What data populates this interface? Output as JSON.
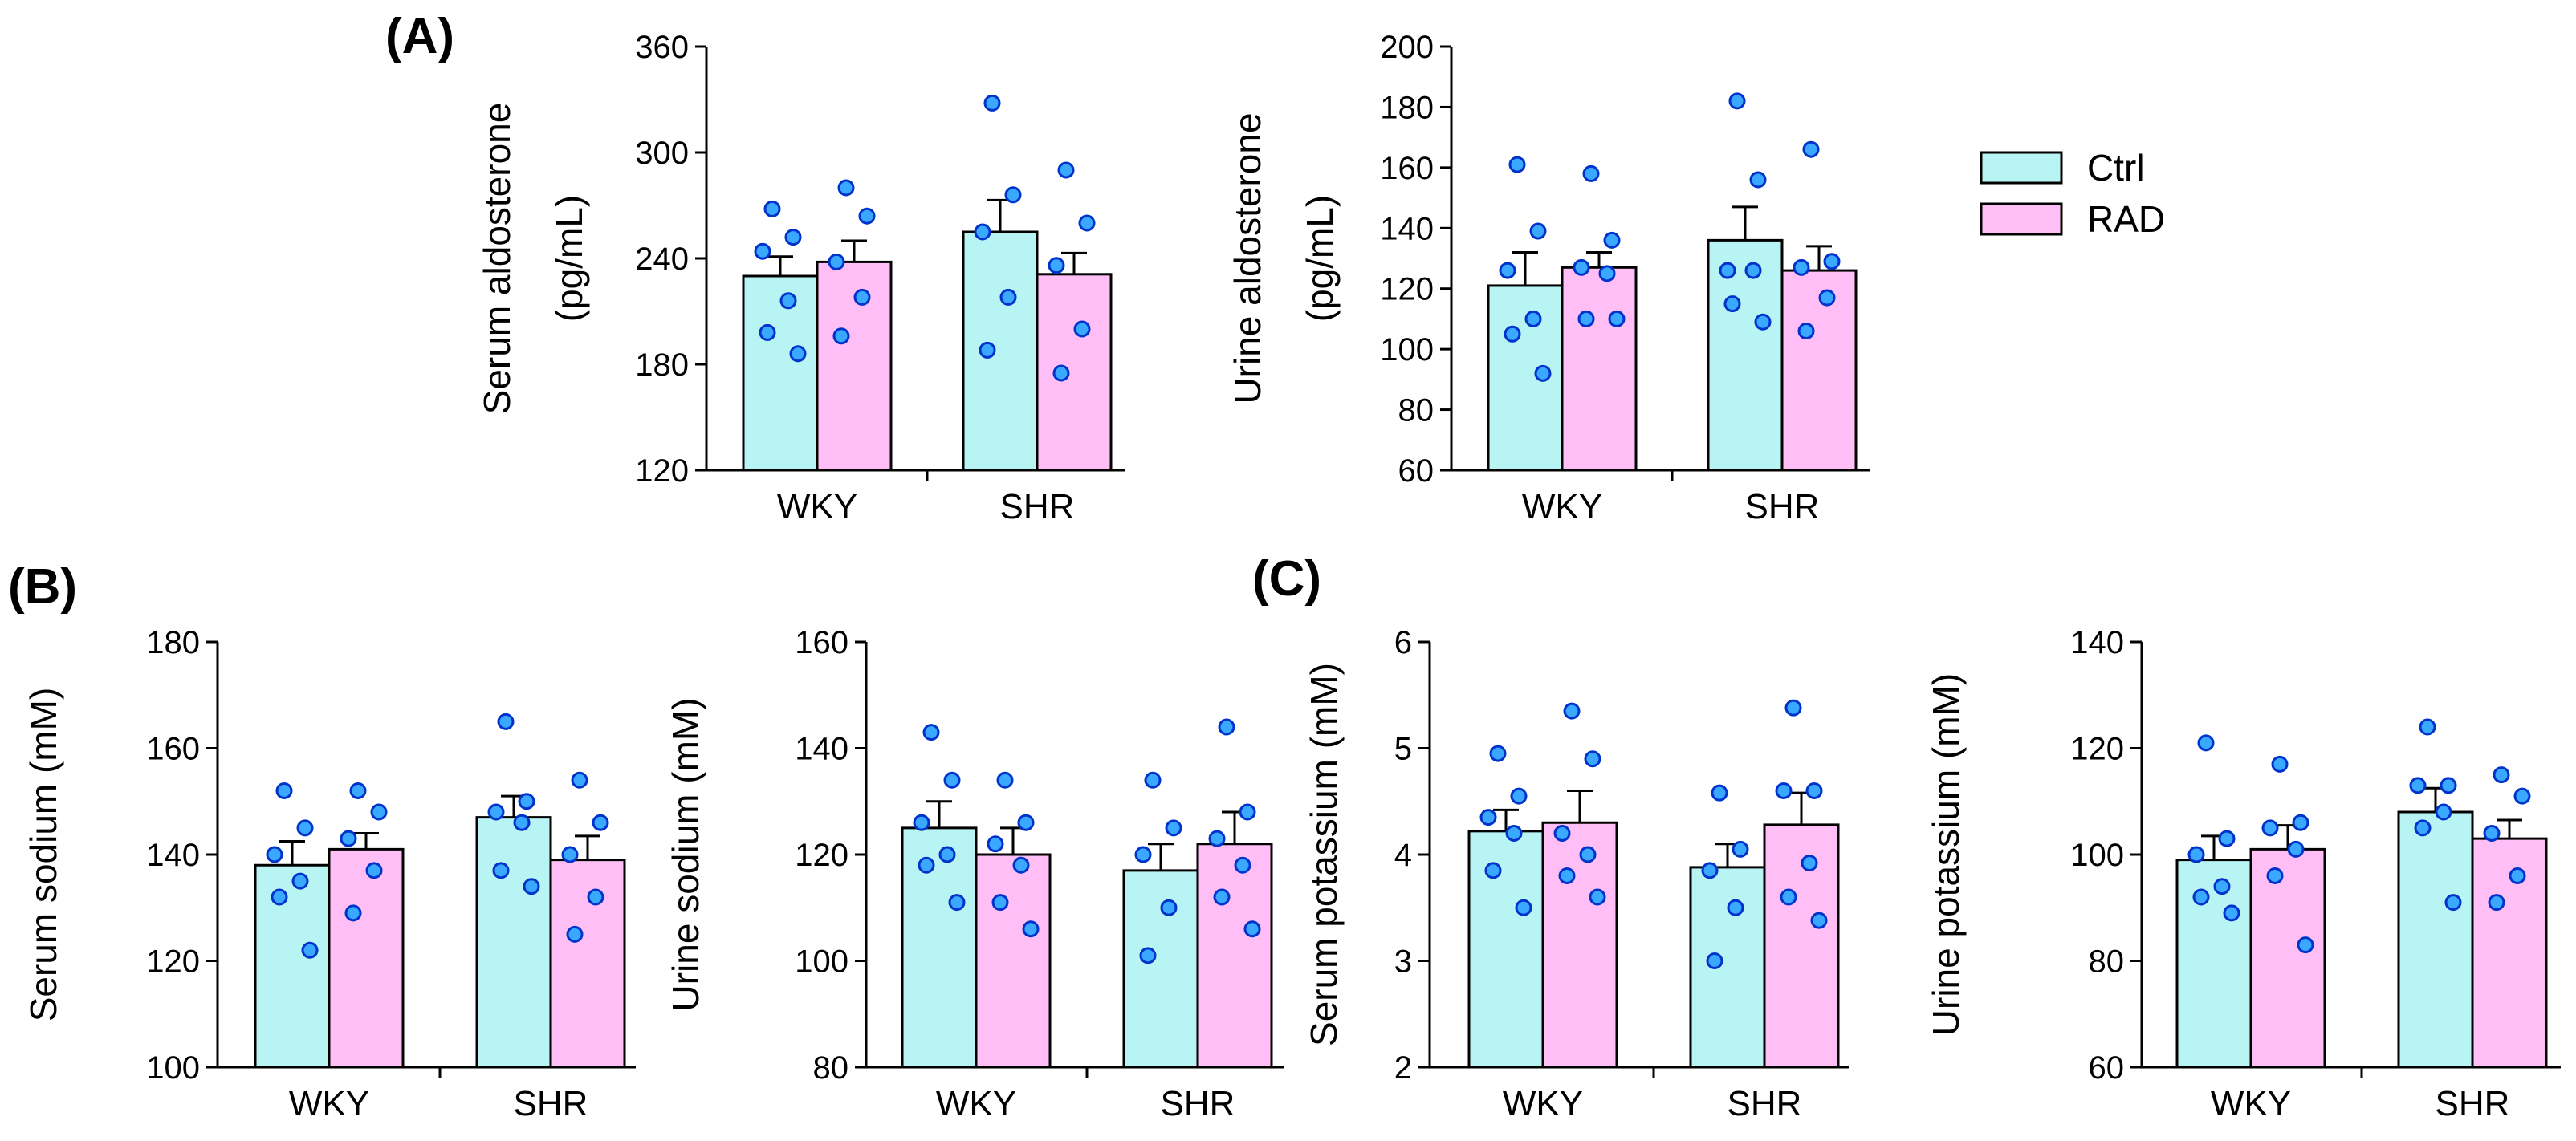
{
  "panel_labels": [
    "(A)",
    "(B)",
    "(C)"
  ],
  "legend": [
    {
      "label": "Ctrl",
      "color": "#b8f4f4"
    },
    {
      "label": "RAD",
      "color": "#ffbff6"
    }
  ],
  "colors": {
    "ctrl": "#b8f4f4",
    "rad": "#ffbff6",
    "dot_fill": "#3aa8ff",
    "dot_stroke": "#0033cc",
    "axis": "#000000"
  },
  "chart_data": [
    {
      "type": "bar",
      "title": "",
      "xlabel": "",
      "ylabel": [
        "Serum aldosterone",
        "(pg/mL)"
      ],
      "categories": [
        "WKY",
        "SHR"
      ],
      "ylim": [
        120,
        360
      ],
      "yticks": [
        120,
        180,
        240,
        300,
        360
      ],
      "grid": false,
      "series": [
        {
          "name": "Ctrl",
          "values": [
            230,
            255
          ],
          "errors": [
            11,
            18
          ],
          "points": [
            [
              268,
              252,
              244,
              216,
              198,
              186
            ],
            [
              328,
              276,
              255,
              218,
              188
            ]
          ]
        },
        {
          "name": "RAD",
          "values": [
            238,
            231
          ],
          "errors": [
            12,
            12
          ],
          "points": [
            [
              280,
              264,
              238,
              218,
              196
            ],
            [
              290,
              260,
              236,
              200,
              175
            ]
          ]
        }
      ]
    },
    {
      "type": "bar",
      "title": "",
      "xlabel": "",
      "ylabel": [
        "Urine aldosterone",
        "(pg/mL)"
      ],
      "categories": [
        "WKY",
        "SHR"
      ],
      "ylim": [
        60,
        200
      ],
      "yticks": [
        60,
        80,
        100,
        120,
        140,
        160,
        180,
        200
      ],
      "grid": false,
      "series": [
        {
          "name": "Ctrl",
          "values": [
            121,
            136
          ],
          "errors": [
            11,
            11
          ],
          "points": [
            [
              161,
              139,
              126,
              110,
              105,
              92
            ],
            [
              182,
              156,
              126,
              126,
              115,
              109
            ]
          ]
        },
        {
          "name": "RAD",
          "values": [
            127,
            126
          ],
          "errors": [
            5,
            8
          ],
          "points": [
            [
              158,
              136,
              127,
              125,
              110,
              110
            ],
            [
              166,
              129,
              127,
              117,
              106
            ]
          ]
        }
      ]
    },
    {
      "type": "bar",
      "title": "",
      "xlabel": "",
      "ylabel": [
        "Serum sodium (mM)"
      ],
      "categories": [
        "WKY",
        "SHR"
      ],
      "ylim": [
        100,
        180
      ],
      "yticks": [
        100,
        120,
        140,
        160,
        180
      ],
      "grid": false,
      "series": [
        {
          "name": "Ctrl",
          "values": [
            138,
            147
          ],
          "errors": [
            4.5,
            4
          ],
          "points": [
            [
              152,
              145,
              140,
              135,
              132,
              122
            ],
            [
              165,
              150,
              148,
              146,
              137,
              134
            ]
          ]
        },
        {
          "name": "RAD",
          "values": [
            141,
            139
          ],
          "errors": [
            3,
            4.5
          ],
          "points": [
            [
              152,
              148,
              143,
              137,
              129
            ],
            [
              154,
              146,
              140,
              132,
              125
            ]
          ]
        }
      ]
    },
    {
      "type": "bar",
      "title": "",
      "xlabel": "",
      "ylabel": [
        "Urine sodium (mM)"
      ],
      "categories": [
        "WKY",
        "SHR"
      ],
      "ylim": [
        80,
        160
      ],
      "yticks": [
        80,
        100,
        120,
        140,
        160
      ],
      "grid": false,
      "series": [
        {
          "name": "Ctrl",
          "values": [
            125,
            117
          ],
          "errors": [
            5,
            5
          ],
          "points": [
            [
              143,
              134,
              126,
              120,
              118,
              111
            ],
            [
              134,
              125,
              120,
              110,
              101
            ]
          ]
        },
        {
          "name": "RAD",
          "values": [
            120,
            122
          ],
          "errors": [
            5,
            6
          ],
          "points": [
            [
              134,
              126,
              122,
              118,
              111,
              106
            ],
            [
              144,
              128,
              123,
              118,
              112,
              106
            ]
          ]
        }
      ]
    },
    {
      "type": "bar",
      "title": "",
      "xlabel": "",
      "ylabel": [
        "Serum potassium (mM)"
      ],
      "categories": [
        "WKY",
        "SHR"
      ],
      "ylim": [
        2,
        6
      ],
      "yticks": [
        2,
        3,
        4,
        5,
        6
      ],
      "grid": false,
      "series": [
        {
          "name": "Ctrl",
          "values": [
            4.22,
            3.88
          ],
          "errors": [
            0.2,
            0.22
          ],
          "points": [
            [
              4.95,
              4.55,
              4.35,
              4.2,
              3.85,
              3.5
            ],
            [
              4.58,
              4.05,
              3.85,
              3.5,
              3.0
            ]
          ]
        },
        {
          "name": "RAD",
          "values": [
            4.3,
            4.28
          ],
          "errors": [
            0.3,
            0.3
          ],
          "points": [
            [
              5.35,
              4.9,
              4.2,
              4.0,
              3.8,
              3.6
            ],
            [
              5.38,
              4.6,
              4.6,
              3.92,
              3.6,
              3.38
            ]
          ]
        }
      ]
    },
    {
      "type": "bar",
      "title": "",
      "xlabel": "",
      "ylabel": [
        "Urine potassium (mM)"
      ],
      "categories": [
        "WKY",
        "SHR"
      ],
      "ylim": [
        60,
        140
      ],
      "yticks": [
        60,
        80,
        100,
        120,
        140
      ],
      "grid": false,
      "series": [
        {
          "name": "Ctrl",
          "values": [
            99,
            108
          ],
          "errors": [
            4.5,
            4.5
          ],
          "points": [
            [
              121,
              103,
              100,
              94,
              92,
              89
            ],
            [
              124,
              113,
              113,
              108,
              105,
              91
            ]
          ]
        },
        {
          "name": "RAD",
          "values": [
            101,
            103
          ],
          "errors": [
            4.5,
            3.5
          ],
          "points": [
            [
              117,
              106,
              105,
              101,
              96,
              83
            ],
            [
              115,
              111,
              104,
              96,
              91
            ]
          ]
        }
      ]
    }
  ]
}
